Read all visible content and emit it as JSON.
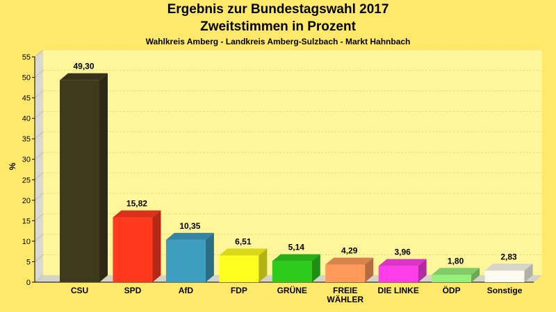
{
  "chart_data": {
    "type": "bar",
    "title": "Ergebnis zur Bundestagswahl 2017",
    "subtitle": "Zweitstimmen in Prozent",
    "subtitle2": "Wahlkreis Amberg - Landkreis Amberg-Sulzbach - Markt Hahnbach",
    "ylabel": "%",
    "xlabel": "",
    "ylim": [
      0,
      55
    ],
    "yticks": [
      0,
      5,
      10,
      15,
      20,
      25,
      30,
      35,
      40,
      45,
      50,
      55
    ],
    "grid": true,
    "categories": [
      {
        "lines": [
          "CSU"
        ]
      },
      {
        "lines": [
          "SPD"
        ]
      },
      {
        "lines": [
          "AfD"
        ]
      },
      {
        "lines": [
          "FDP"
        ]
      },
      {
        "lines": [
          "GRÜNE"
        ]
      },
      {
        "lines": [
          "FREIE",
          "WÄHLER"
        ]
      },
      {
        "lines": [
          "DIE LINKE"
        ]
      },
      {
        "lines": [
          "ÖDP"
        ]
      },
      {
        "lines": [
          "Sonstige"
        ]
      }
    ],
    "values": [
      49.3,
      15.82,
      10.35,
      6.51,
      5.14,
      4.29,
      3.96,
      1.8,
      2.83
    ],
    "labels": [
      "49,30",
      "15,82",
      "10,35",
      "6,51",
      "5,14",
      "4,29",
      "3,96",
      "1,80",
      "2,83"
    ],
    "colors": [
      "#403a1c",
      "#ff3a1f",
      "#3d9ec1",
      "#ffff1f",
      "#2ecb1c",
      "#ff9a5a",
      "#ff3ee9",
      "#95f07c",
      "#fbfbf0"
    ]
  }
}
